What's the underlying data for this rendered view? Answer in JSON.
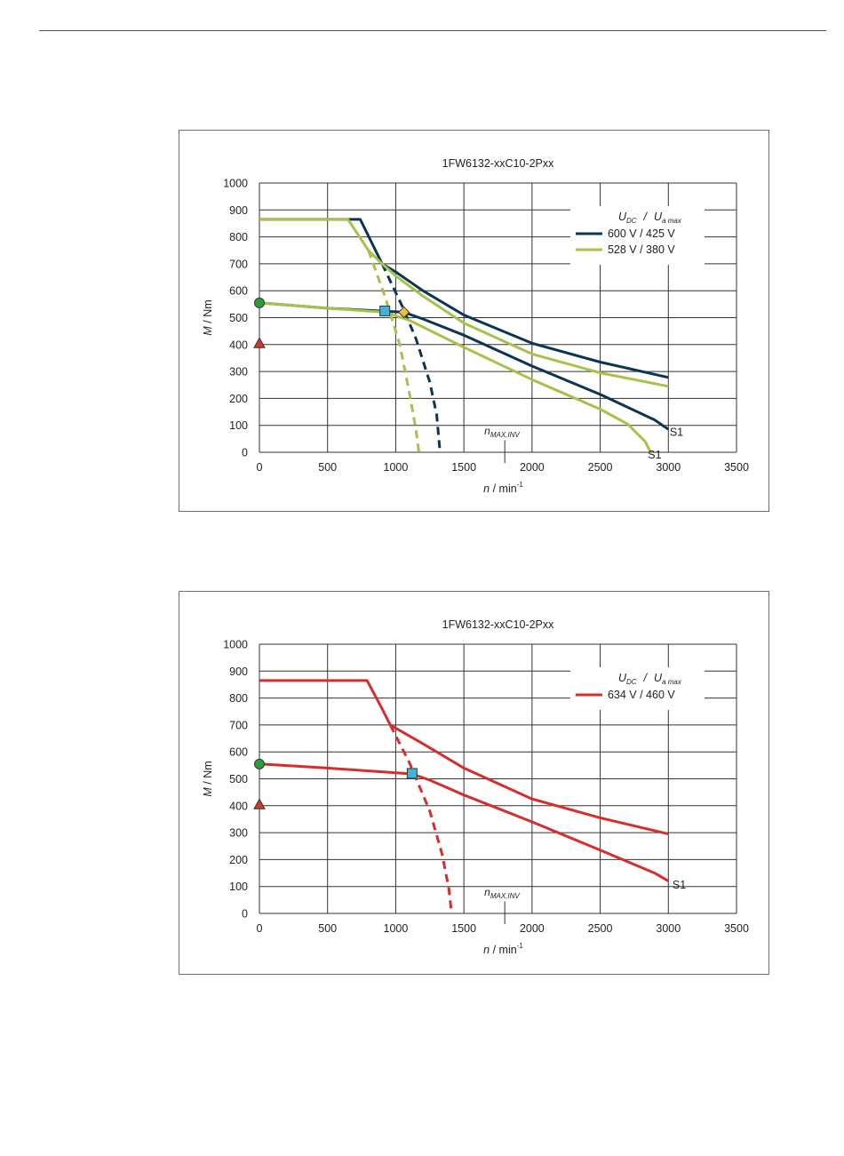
{
  "chart_data": [
    {
      "type": "line",
      "title": "1FW6132-xxC10-2Pxx",
      "xlabel_var": "n",
      "xlabel_unit": "/ min",
      "xlabel_exp": "-1",
      "ylabel_var": "M",
      "ylabel_unit": "/ Nm",
      "xlim": [
        0,
        3500
      ],
      "ylim": [
        0,
        1000
      ],
      "x_ticks": [
        "0",
        "500",
        "1000",
        "1500",
        "2000",
        "2500",
        "3000",
        "3500"
      ],
      "y_ticks": [
        "0",
        "100",
        "200",
        "300",
        "400",
        "500",
        "600",
        "700",
        "800",
        "900",
        "1000"
      ],
      "grid": true,
      "legend_position": "top-right",
      "legend_header": {
        "u1": "U",
        "s1": "DC",
        "sep": "/",
        "u2": "U",
        "s2": "a max"
      },
      "legend": [
        {
          "label": "600 V / 425 V",
          "color": "#0c3550"
        },
        {
          "label": "528 V / 380 V",
          "color": "#a6c24a"
        }
      ],
      "series": [
        {
          "name": "600 V / 425 V",
          "color": "#0c3550",
          "style": "solid",
          "x": [
            0,
            740,
            900,
            1000,
            1200,
            1500,
            2000,
            2500,
            3000
          ],
          "y": [
            865,
            865,
            700,
            670,
            600,
            510,
            405,
            335,
            278
          ]
        },
        {
          "name": "600 V / 425 V",
          "color": "#0c3550",
          "style": "dashed",
          "x": [
            900,
            1050,
            1150,
            1250,
            1300,
            1325
          ],
          "y": [
            700,
            540,
            420,
            260,
            140,
            0
          ]
        },
        {
          "name": "600 V / 425 V",
          "color": "#0c3550",
          "style": "solid",
          "x": [
            0,
            500,
            1060,
            1200,
            1500,
            2000,
            2500,
            2900,
            3000
          ],
          "y": [
            555,
            535,
            520,
            495,
            435,
            320,
            215,
            120,
            85
          ]
        },
        {
          "name": "528 V / 380 V",
          "color": "#a6c24a",
          "style": "solid",
          "x": [
            0,
            650,
            800,
            900,
            1000,
            1200,
            1500,
            2000,
            2500,
            3000
          ],
          "y": [
            865,
            865,
            750,
            700,
            655,
            580,
            480,
            365,
            295,
            245
          ]
        },
        {
          "name": "528 V / 380 V",
          "color": "#a6c24a",
          "style": "dashed",
          "x": [
            800,
            920,
            1030,
            1100,
            1150,
            1170
          ],
          "y": [
            750,
            580,
            400,
            220,
            80,
            0
          ]
        },
        {
          "name": "528 V / 380 V",
          "color": "#a6c24a",
          "style": "solid",
          "x": [
            0,
            500,
            920,
            1100,
            1500,
            2000,
            2500,
            2700,
            2830,
            2870
          ],
          "y": [
            555,
            535,
            520,
            490,
            390,
            270,
            160,
            105,
            40,
            0
          ]
        }
      ],
      "markers": [
        {
          "shape": "circle",
          "x": 0,
          "y": 555,
          "color": "#2e9a3e"
        },
        {
          "shape": "triangle",
          "x": 0,
          "y": 405,
          "color": "#d0392b"
        },
        {
          "shape": "square",
          "x": 920,
          "y": 525,
          "color": "#3fb4d8"
        },
        {
          "shape": "diamond",
          "x": 1060,
          "y": 520,
          "color": "#e8c23a"
        }
      ],
      "annotations": [
        {
          "text": "S1",
          "x": 3010,
          "y": 75
        },
        {
          "text": "S1",
          "x": 2850,
          "y": -10
        }
      ],
      "n_max": {
        "base": "n",
        "sub": "MAX,INV",
        "x": 1800
      }
    },
    {
      "type": "line",
      "title": "1FW6132-xxC10-2Pxx",
      "xlabel_var": "n",
      "xlabel_unit": "/ min",
      "xlabel_exp": "-1",
      "ylabel_var": "M",
      "ylabel_unit": "/ Nm",
      "xlim": [
        0,
        3500
      ],
      "ylim": [
        0,
        1000
      ],
      "x_ticks": [
        "0",
        "500",
        "1000",
        "1500",
        "2000",
        "2500",
        "3000",
        "3500"
      ],
      "y_ticks": [
        "0",
        "100",
        "200",
        "300",
        "400",
        "500",
        "600",
        "700",
        "800",
        "900",
        "1000"
      ],
      "grid": true,
      "legend_position": "top-right",
      "legend_header": {
        "u1": "U",
        "s1": "DC",
        "sep": "/",
        "u2": "U",
        "s2": "a max"
      },
      "legend": [
        {
          "label": "634 V / 460 V",
          "color": "#d62d2d"
        }
      ],
      "series": [
        {
          "name": "634 V / 460 V",
          "color": "#d62d2d",
          "style": "solid",
          "x": [
            0,
            790,
            900,
            960,
            1200,
            1500,
            2000,
            2500,
            3000
          ],
          "y": [
            865,
            865,
            760,
            700,
            630,
            540,
            425,
            355,
            295
          ]
        },
        {
          "name": "634 V / 460 V",
          "color": "#d62d2d",
          "style": "dashed",
          "x": [
            960,
            1100,
            1250,
            1340,
            1390,
            1410
          ],
          "y": [
            700,
            560,
            380,
            220,
            90,
            0
          ]
        },
        {
          "name": "634 V / 460 V",
          "color": "#d62d2d",
          "style": "solid",
          "x": [
            0,
            500,
            1120,
            1250,
            1500,
            2000,
            2500,
            2900,
            3000
          ],
          "y": [
            555,
            540,
            518,
            495,
            440,
            340,
            235,
            150,
            120
          ]
        }
      ],
      "markers": [
        {
          "shape": "circle",
          "x": 0,
          "y": 555,
          "color": "#2e9a3e"
        },
        {
          "shape": "triangle",
          "x": 0,
          "y": 405,
          "color": "#d0392b"
        },
        {
          "shape": "square",
          "x": 1120,
          "y": 520,
          "color": "#3fb4d8"
        }
      ],
      "annotations": [
        {
          "text": "S1",
          "x": 3030,
          "y": 105
        }
      ],
      "n_max": {
        "base": "n",
        "sub": "MAX,INV",
        "x": 1800
      }
    }
  ]
}
